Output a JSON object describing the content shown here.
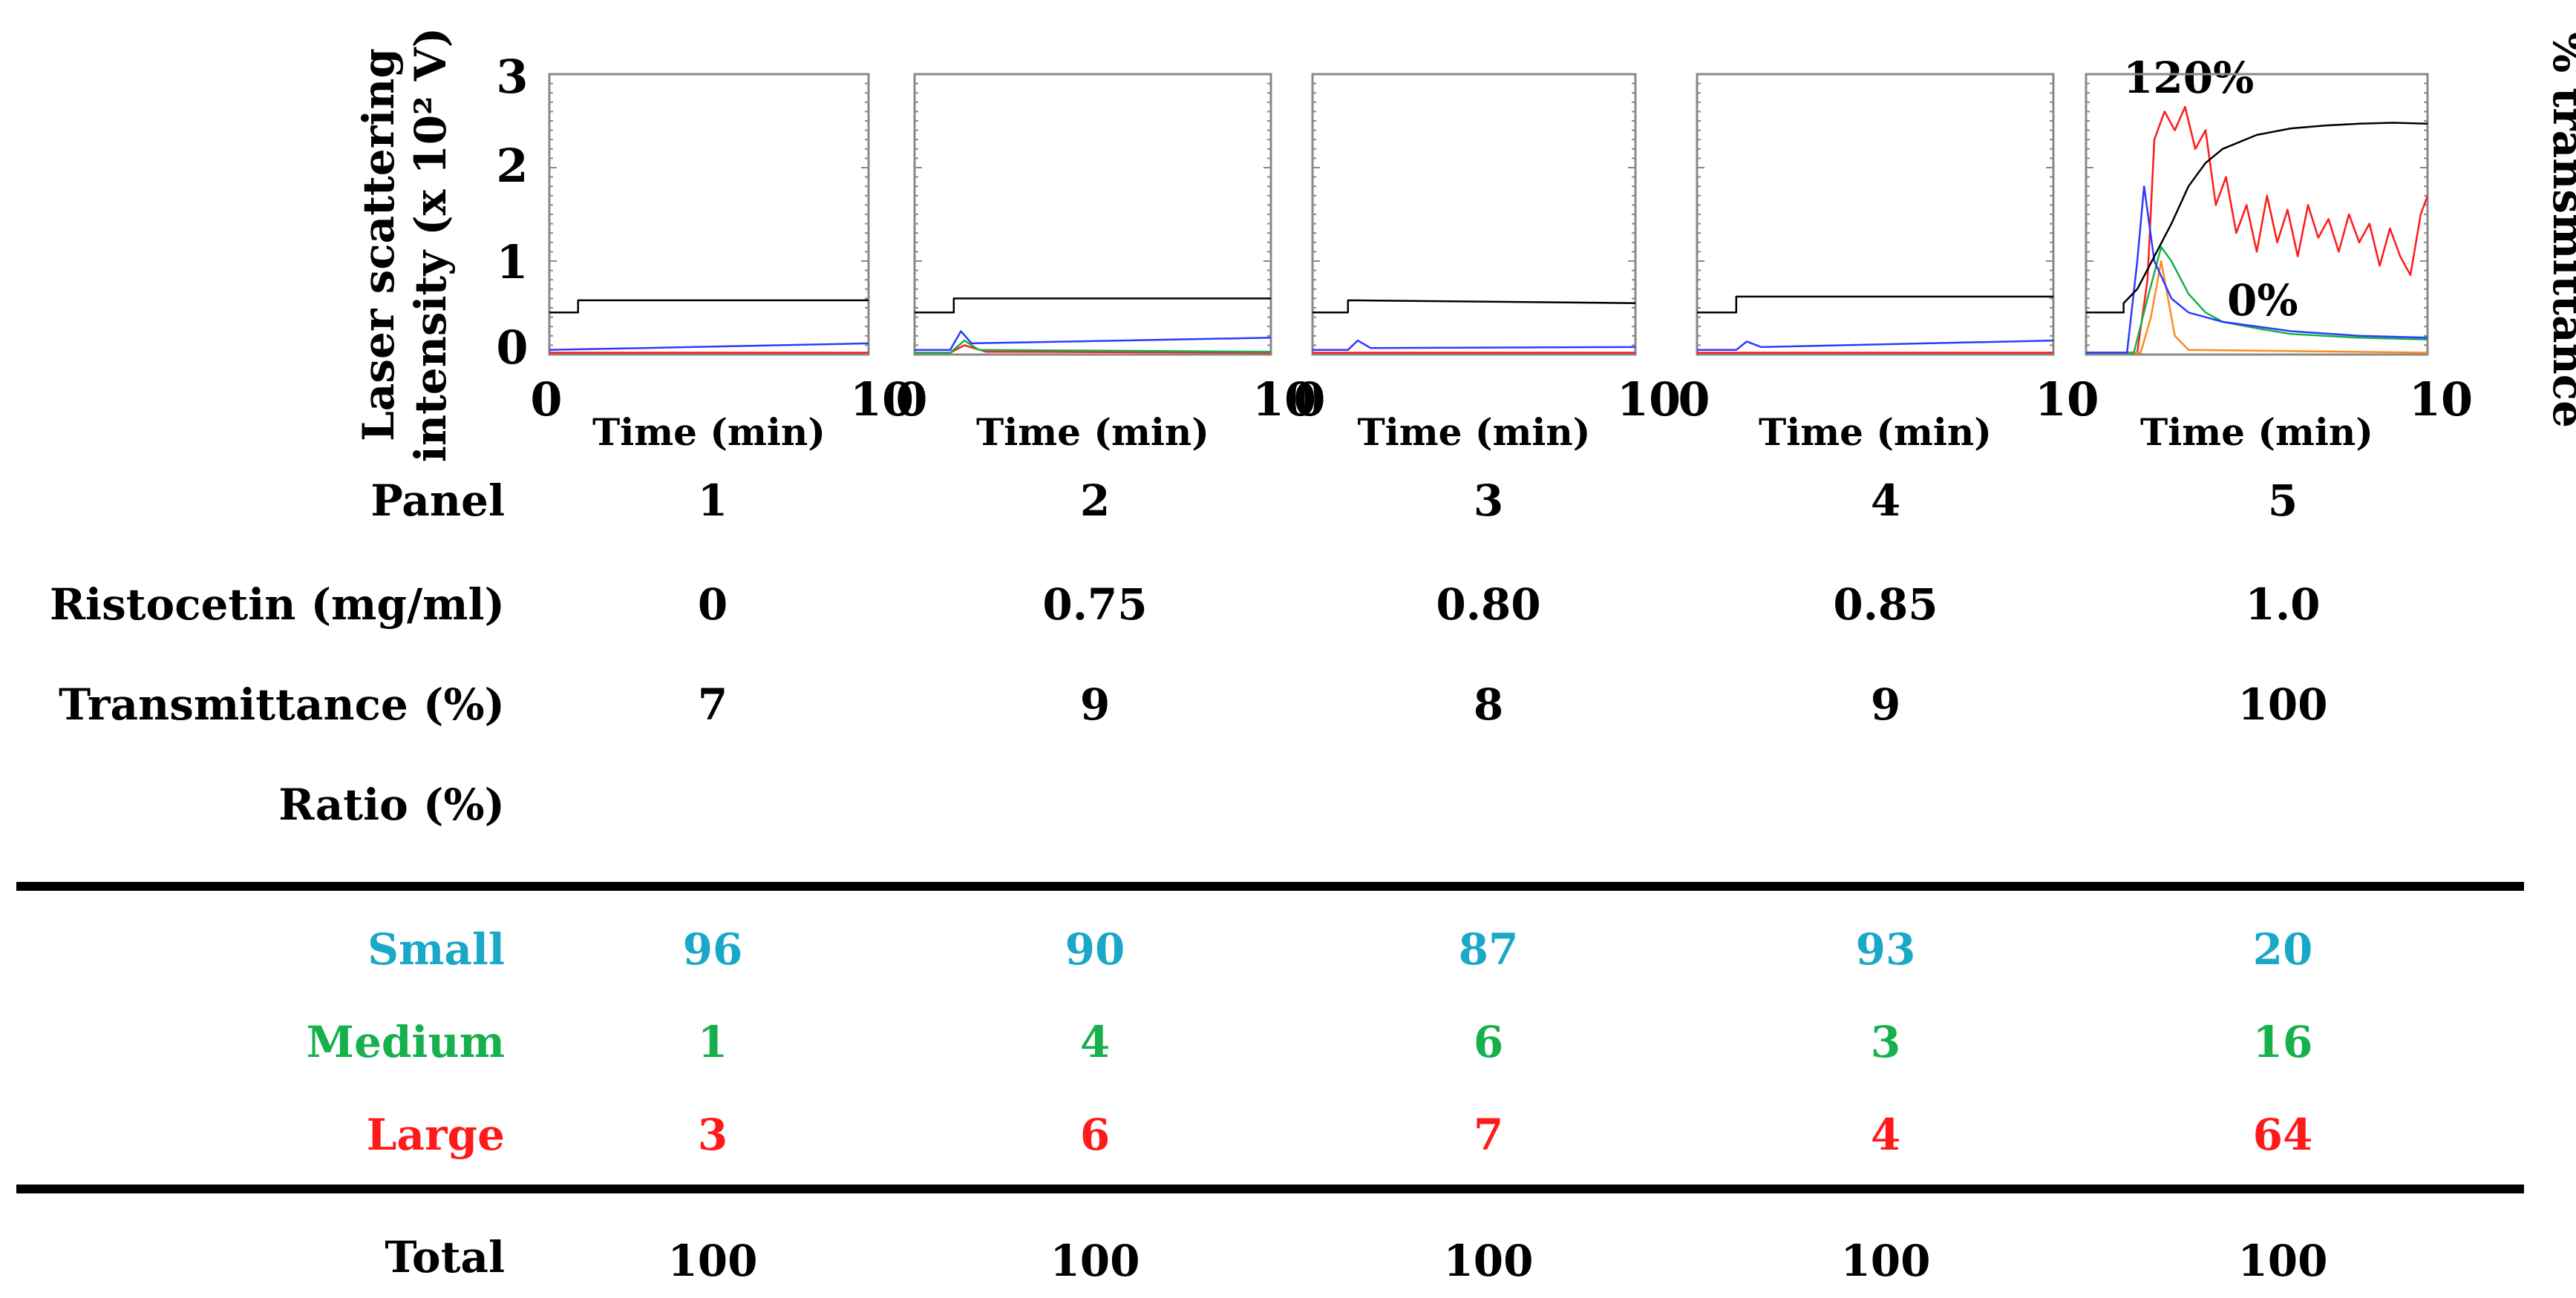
{
  "colors": {
    "black": "#000000",
    "small": "#1aa8c8",
    "medium": "#16b04c",
    "large": "#ff1a1a",
    "blue_trace": "#2a3cff",
    "orange_trace": "#ff8c1a",
    "frame": "#888888"
  },
  "axes": {
    "ylabel_line1": "Laser scattering",
    "ylabel_line2": "intensity (x 10² V)",
    "y_ticks": [
      "0",
      "1",
      "2",
      "3"
    ],
    "xlabel": "Time (min)",
    "x_tick_start": "0",
    "x_tick_end": "10",
    "right_ylabel": "% transmittance",
    "right_ticks": [
      "0%",
      "120%"
    ]
  },
  "chart_data": [
    {
      "type": "line",
      "panel": "1",
      "xlim": [
        0,
        10
      ],
      "ylim": [
        0,
        3
      ],
      "series": [
        {
          "name": "black",
          "x": [
            0,
            0.9,
            0.9,
            10
          ],
          "y": [
            0.45,
            0.45,
            0.58,
            0.58
          ]
        },
        {
          "name": "blue",
          "x": [
            0,
            3,
            10
          ],
          "y": [
            0.05,
            0.07,
            0.12
          ]
        },
        {
          "name": "red",
          "x": [
            0,
            10
          ],
          "y": [
            0.02,
            0.02
          ]
        }
      ]
    },
    {
      "type": "line",
      "panel": "2",
      "xlim": [
        0,
        10
      ],
      "ylim": [
        0,
        3
      ],
      "series": [
        {
          "name": "black",
          "x": [
            0,
            1.1,
            1.1,
            10
          ],
          "y": [
            0.45,
            0.45,
            0.6,
            0.6
          ]
        },
        {
          "name": "blue",
          "x": [
            0,
            1.0,
            1.3,
            1.6,
            10
          ],
          "y": [
            0.05,
            0.05,
            0.25,
            0.12,
            0.18
          ]
        },
        {
          "name": "green",
          "x": [
            0,
            1.0,
            1.4,
            1.8,
            10
          ],
          "y": [
            0.02,
            0.02,
            0.15,
            0.05,
            0.03
          ]
        },
        {
          "name": "red",
          "x": [
            0,
            1.0,
            1.4,
            2.0,
            10
          ],
          "y": [
            0.02,
            0.02,
            0.1,
            0.03,
            0.02
          ]
        }
      ]
    },
    {
      "type": "line",
      "panel": "3",
      "xlim": [
        0,
        10
      ],
      "ylim": [
        0,
        3
      ],
      "series": [
        {
          "name": "black",
          "x": [
            0,
            1.1,
            1.1,
            10
          ],
          "y": [
            0.45,
            0.45,
            0.58,
            0.55
          ]
        },
        {
          "name": "blue",
          "x": [
            0,
            1.1,
            1.4,
            1.8,
            10
          ],
          "y": [
            0.05,
            0.05,
            0.15,
            0.07,
            0.08
          ]
        },
        {
          "name": "red",
          "x": [
            0,
            10
          ],
          "y": [
            0.02,
            0.02
          ]
        }
      ]
    },
    {
      "type": "line",
      "panel": "4",
      "xlim": [
        0,
        10
      ],
      "ylim": [
        0,
        3
      ],
      "series": [
        {
          "name": "black",
          "x": [
            0,
            1.1,
            1.1,
            10
          ],
          "y": [
            0.45,
            0.45,
            0.62,
            0.62
          ]
        },
        {
          "name": "blue",
          "x": [
            0,
            1.1,
            1.4,
            1.8,
            10
          ],
          "y": [
            0.05,
            0.05,
            0.14,
            0.08,
            0.15
          ]
        },
        {
          "name": "red",
          "x": [
            0,
            10
          ],
          "y": [
            0.02,
            0.02
          ]
        }
      ]
    },
    {
      "type": "line",
      "panel": "5",
      "xlim": [
        0,
        10
      ],
      "ylim": [
        0,
        3
      ],
      "series": [
        {
          "name": "black",
          "x": [
            0,
            1.1,
            1.1,
            1.5,
            2.0,
            2.5,
            3,
            3.5,
            4,
            5,
            6,
            7,
            8,
            9,
            10
          ],
          "y": [
            0.45,
            0.45,
            0.55,
            0.7,
            1.05,
            1.4,
            1.8,
            2.05,
            2.2,
            2.35,
            2.42,
            2.45,
            2.47,
            2.48,
            2.47
          ]
        },
        {
          "name": "blue",
          "x": [
            0,
            1.2,
            1.5,
            1.7,
            2.0,
            2.5,
            3,
            4,
            6,
            8,
            10
          ],
          "y": [
            0.02,
            0.02,
            1.0,
            1.8,
            1.0,
            0.6,
            0.45,
            0.35,
            0.25,
            0.2,
            0.18
          ]
        },
        {
          "name": "green",
          "x": [
            0,
            1.4,
            1.8,
            2.2,
            2.5,
            3,
            3.5,
            4,
            5,
            6,
            8,
            10
          ],
          "y": [
            0.02,
            0.02,
            0.6,
            1.15,
            1.0,
            0.65,
            0.45,
            0.35,
            0.28,
            0.22,
            0.18,
            0.16
          ]
        },
        {
          "name": "orange",
          "x": [
            0,
            1.6,
            1.9,
            2.2,
            2.6,
            3,
            10
          ],
          "y": [
            0.02,
            0.02,
            0.4,
            1.0,
            0.2,
            0.05,
            0.02
          ]
        },
        {
          "name": "red",
          "x": [
            0,
            1.5,
            1.8,
            2.0,
            2.3,
            2.6,
            2.9,
            3.2,
            3.5,
            3.8,
            4.1,
            4.4,
            4.7,
            5.0,
            5.3,
            5.6,
            5.9,
            6.2,
            6.5,
            6.8,
            7.1,
            7.4,
            7.7,
            8.0,
            8.3,
            8.6,
            8.9,
            9.2,
            9.5,
            9.8,
            10
          ],
          "y": [
            0.02,
            0.02,
            0.8,
            2.3,
            2.6,
            2.4,
            2.65,
            2.2,
            2.4,
            1.6,
            1.9,
            1.3,
            1.6,
            1.1,
            1.7,
            1.2,
            1.55,
            1.05,
            1.6,
            1.25,
            1.45,
            1.1,
            1.5,
            1.2,
            1.4,
            0.95,
            1.35,
            1.05,
            0.85,
            1.5,
            1.7
          ]
        }
      ]
    }
  ],
  "table": {
    "panel_label": "Panel",
    "ristocetin_label": "Ristocetin (mg/ml)",
    "transmittance_label": "Transmittance (%)",
    "ratio_label": "Ratio (%)",
    "small_label": "Small",
    "medium_label": "Medium",
    "large_label": "Large",
    "total_label": "Total",
    "columns": [
      {
        "panel": "1",
        "ristocetin": "0",
        "transmittance": "7",
        "small": "96",
        "medium": "1",
        "large": "3",
        "total": "100"
      },
      {
        "panel": "2",
        "ristocetin": "0.75",
        "transmittance": "9",
        "small": "90",
        "medium": "4",
        "large": "6",
        "total": "100"
      },
      {
        "panel": "3",
        "ristocetin": "0.80",
        "transmittance": "8",
        "small": "87",
        "medium": "6",
        "large": "7",
        "total": "100"
      },
      {
        "panel": "4",
        "ristocetin": "0.85",
        "transmittance": "9",
        "small": "93",
        "medium": "3",
        "large": "4",
        "total": "100"
      },
      {
        "panel": "5",
        "ristocetin": "1.0",
        "transmittance": "100",
        "small": "20",
        "medium": "16",
        "large": "64",
        "total": "100"
      }
    ]
  }
}
